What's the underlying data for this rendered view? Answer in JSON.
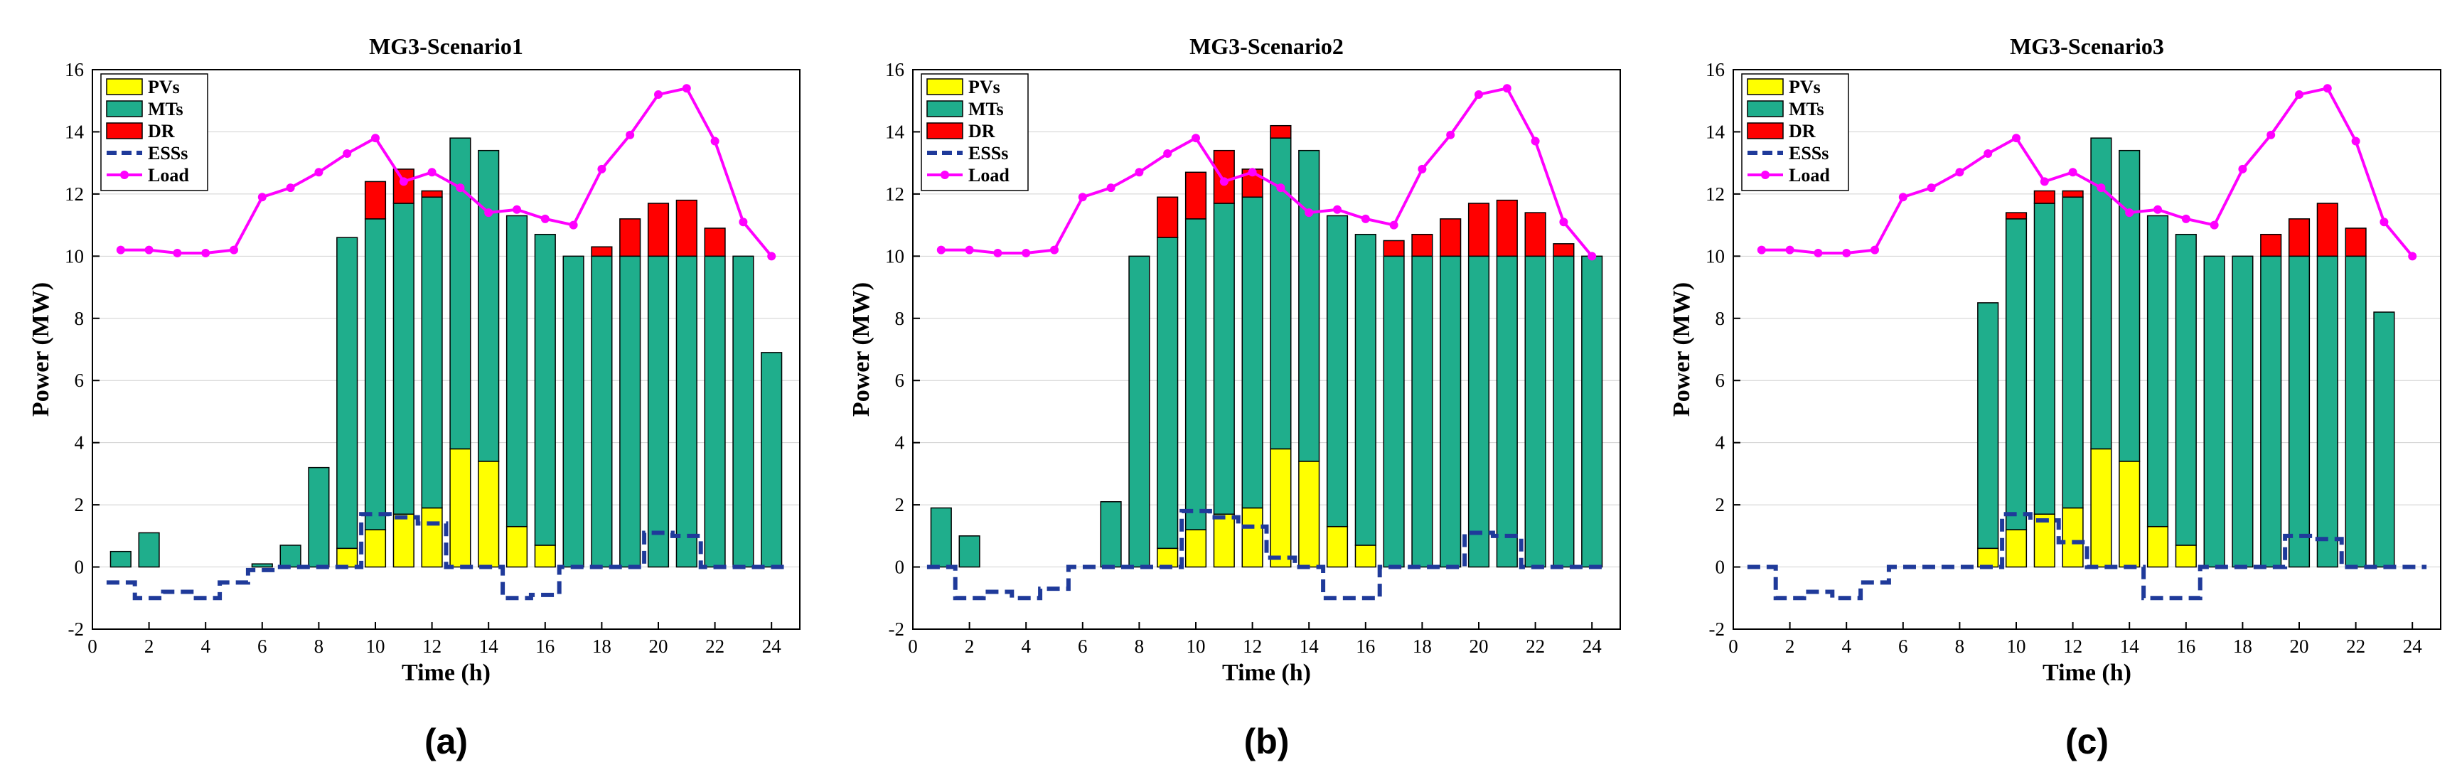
{
  "colors": {
    "pv": "#ffff00",
    "mt": "#1fae8c",
    "dr": "#ff0000",
    "ess": "#1f3a9a",
    "load": "#ff00ff"
  },
  "legend": [
    "PVs",
    "MTs",
    "DR",
    "ESSs",
    "Load"
  ],
  "chart_data": [
    {
      "type": "bar",
      "panel_label": "(a)",
      "title": "MG3-Scenario1",
      "xlabel": "Time (h)",
      "ylabel": "Power (MW)",
      "xlim": [
        0,
        25
      ],
      "ylim": [
        -2,
        16
      ],
      "xticks": [
        0,
        2,
        4,
        6,
        8,
        10,
        12,
        14,
        16,
        18,
        20,
        22,
        24
      ],
      "yticks": [
        -2,
        0,
        2,
        4,
        6,
        8,
        10,
        12,
        14,
        16
      ],
      "x": [
        1,
        2,
        3,
        4,
        5,
        6,
        7,
        8,
        9,
        10,
        11,
        12,
        13,
        14,
        15,
        16,
        17,
        18,
        19,
        20,
        21,
        22,
        23,
        24
      ],
      "series": [
        {
          "name": "PVs",
          "values": [
            0,
            0,
            0,
            0,
            0,
            0,
            0,
            0,
            0.6,
            1.2,
            1.7,
            1.9,
            3.8,
            3.4,
            1.3,
            0.7,
            0,
            0,
            0,
            0,
            0,
            0,
            0,
            0
          ]
        },
        {
          "name": "MTs",
          "values": [
            0.5,
            1.1,
            0,
            0,
            0,
            0.1,
            0.7,
            3.2,
            10.0,
            10.0,
            10.0,
            10.0,
            10.0,
            10.0,
            10.0,
            10.0,
            10.0,
            10.0,
            10.0,
            10.0,
            10.0,
            10.0,
            10.0,
            6.9
          ]
        },
        {
          "name": "DR",
          "values": [
            0,
            0,
            0,
            0,
            0,
            0,
            0,
            0,
            0,
            1.2,
            1.1,
            0.2,
            0,
            0,
            0,
            0,
            0,
            0.3,
            1.2,
            1.7,
            1.8,
            0.9,
            0,
            0
          ]
        },
        {
          "name": "ESSs",
          "values": [
            -0.5,
            -1.0,
            -0.8,
            -1.0,
            -0.5,
            -0.1,
            0,
            0,
            0,
            1.7,
            1.6,
            1.4,
            0,
            0,
            -1.0,
            -0.9,
            0,
            0,
            0,
            1.1,
            1.0,
            0,
            0,
            0
          ]
        },
        {
          "name": "Load",
          "values": [
            10.2,
            10.2,
            10.1,
            10.1,
            10.2,
            11.9,
            12.2,
            12.7,
            13.3,
            13.8,
            12.4,
            12.7,
            12.2,
            11.4,
            11.5,
            11.2,
            11.0,
            12.8,
            13.9,
            15.2,
            15.4,
            13.7,
            11.1,
            10.0
          ]
        }
      ]
    },
    {
      "type": "bar",
      "panel_label": "(b)",
      "title": "MG3-Scenario2",
      "xlabel": "Time (h)",
      "ylabel": "Power (MW)",
      "xlim": [
        0,
        25
      ],
      "ylim": [
        -2,
        16
      ],
      "xticks": [
        0,
        2,
        4,
        6,
        8,
        10,
        12,
        14,
        16,
        18,
        20,
        22,
        24
      ],
      "yticks": [
        -2,
        0,
        2,
        4,
        6,
        8,
        10,
        12,
        14,
        16
      ],
      "x": [
        1,
        2,
        3,
        4,
        5,
        6,
        7,
        8,
        9,
        10,
        11,
        12,
        13,
        14,
        15,
        16,
        17,
        18,
        19,
        20,
        21,
        22,
        23,
        24
      ],
      "series": [
        {
          "name": "PVs",
          "values": [
            0,
            0,
            0,
            0,
            0,
            0,
            0,
            0,
            0.6,
            1.2,
            1.7,
            1.9,
            3.8,
            3.4,
            1.3,
            0.7,
            0,
            0,
            0,
            0,
            0,
            0,
            0,
            0
          ]
        },
        {
          "name": "MTs",
          "values": [
            1.9,
            1.0,
            0,
            0,
            0,
            0,
            2.1,
            10.0,
            10.0,
            10.0,
            10.0,
            10.0,
            10.0,
            10.0,
            10.0,
            10.0,
            10.0,
            10.0,
            10.0,
            10.0,
            10.0,
            10.0,
            10.0,
            10.0
          ]
        },
        {
          "name": "DR",
          "values": [
            0,
            0,
            0,
            0,
            0,
            0,
            0,
            0,
            1.3,
            1.5,
            1.7,
            0.9,
            0.4,
            0,
            0,
            0,
            0.5,
            0.7,
            1.2,
            1.7,
            1.8,
            1.4,
            0.4,
            0
          ]
        },
        {
          "name": "ESSs",
          "values": [
            0,
            -1.0,
            -0.8,
            -1.0,
            -0.7,
            0,
            0,
            0,
            0,
            1.8,
            1.6,
            1.3,
            0.3,
            0,
            -1.0,
            -1.0,
            0,
            0,
            0,
            1.1,
            1.0,
            0,
            0,
            0
          ]
        },
        {
          "name": "Load",
          "values": [
            10.2,
            10.2,
            10.1,
            10.1,
            10.2,
            11.9,
            12.2,
            12.7,
            13.3,
            13.8,
            12.4,
            12.7,
            12.2,
            11.4,
            11.5,
            11.2,
            11.0,
            12.8,
            13.9,
            15.2,
            15.4,
            13.7,
            11.1,
            10.0
          ]
        }
      ]
    },
    {
      "type": "bar",
      "panel_label": "(c)",
      "title": "MG3-Scenario3",
      "xlabel": "Time (h)",
      "ylabel": "Power (MW)",
      "xlim": [
        0,
        25
      ],
      "ylim": [
        -2,
        16
      ],
      "xticks": [
        0,
        2,
        4,
        6,
        8,
        10,
        12,
        14,
        16,
        18,
        20,
        22,
        24
      ],
      "yticks": [
        -2,
        0,
        2,
        4,
        6,
        8,
        10,
        12,
        14,
        16
      ],
      "x": [
        1,
        2,
        3,
        4,
        5,
        6,
        7,
        8,
        9,
        10,
        11,
        12,
        13,
        14,
        15,
        16,
        17,
        18,
        19,
        20,
        21,
        22,
        23,
        24
      ],
      "series": [
        {
          "name": "PVs",
          "values": [
            0,
            0,
            0,
            0,
            0,
            0,
            0,
            0,
            0.6,
            1.2,
            1.7,
            1.9,
            3.8,
            3.4,
            1.3,
            0.7,
            0,
            0,
            0,
            0,
            0,
            0,
            0,
            0
          ]
        },
        {
          "name": "MTs",
          "values": [
            0,
            0,
            0,
            0,
            0,
            0,
            0,
            0,
            7.9,
            10.0,
            10.0,
            10.0,
            10.0,
            10.0,
            10.0,
            10.0,
            10.0,
            10.0,
            10.0,
            10.0,
            10.0,
            10.0,
            8.2,
            0
          ]
        },
        {
          "name": "DR",
          "values": [
            0,
            0,
            0,
            0,
            0,
            0,
            0,
            0,
            0,
            0.2,
            0.4,
            0.2,
            0,
            0,
            0,
            0,
            0,
            0,
            0.7,
            1.2,
            1.7,
            0.9,
            0,
            0
          ]
        },
        {
          "name": "ESSs",
          "values": [
            0,
            -1.0,
            -0.8,
            -1.0,
            -0.5,
            0,
            0,
            0,
            0,
            1.7,
            1.5,
            0.8,
            0,
            0,
            -1.0,
            -1.0,
            0,
            0,
            0,
            1.0,
            0.9,
            0,
            0,
            0
          ]
        },
        {
          "name": "Load",
          "values": [
            10.2,
            10.2,
            10.1,
            10.1,
            10.2,
            11.9,
            12.2,
            12.7,
            13.3,
            13.8,
            12.4,
            12.7,
            12.2,
            11.4,
            11.5,
            11.2,
            11.0,
            12.8,
            13.9,
            15.2,
            15.4,
            13.7,
            11.1,
            10.0
          ]
        }
      ]
    }
  ]
}
